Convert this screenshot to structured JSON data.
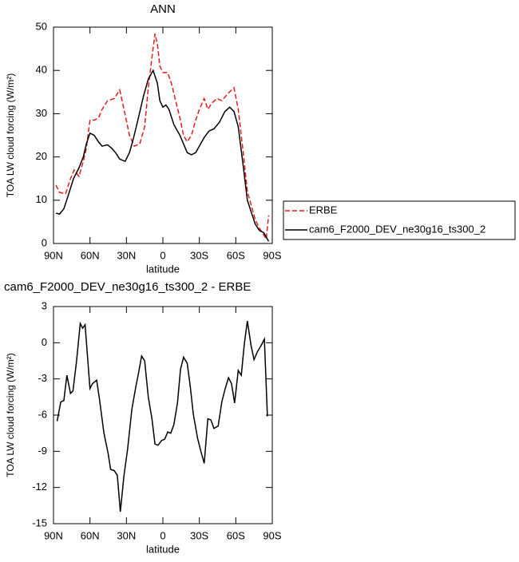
{
  "chart_data": [
    {
      "type": "line",
      "title": "ANN",
      "xlabel": "latitude",
      "ylabel": "TOA LW cloud forcing (W/m²)",
      "xlim": [
        90,
        -90
      ],
      "ylim": [
        0,
        50
      ],
      "xticks": [
        {
          "value": 90,
          "label": "90N"
        },
        {
          "value": 60,
          "label": "60N"
        },
        {
          "value": 30,
          "label": "30N"
        },
        0,
        {
          "value": -30,
          "label": "30S"
        },
        {
          "value": -60,
          "label": "60S"
        },
        {
          "value": -90,
          "label": "90S"
        }
      ],
      "yticks": [
        0,
        10,
        20,
        30,
        40,
        50
      ],
      "legend": "right",
      "series": [
        {
          "name": "ERBE",
          "color": "#e41a1c",
          "dash": true,
          "x": [
            88,
            85,
            80,
            76,
            73,
            69,
            65.5,
            63,
            60,
            56.5,
            53,
            50,
            45.5,
            40,
            35.5,
            32,
            27.5,
            23.5,
            19,
            15,
            12,
            9,
            6.5,
            4.5,
            2.5,
            0,
            -4,
            -7,
            -10.5,
            -14,
            -17,
            -20,
            -23.5,
            -27,
            -30,
            -34,
            -37,
            -40.5,
            -44.5,
            -48.5,
            -53,
            -58.5,
            -62,
            -66.5,
            -69.5,
            -73,
            -76,
            -79.5,
            -83,
            -85,
            -87
          ],
          "values": [
            13.5,
            11.8,
            11.5,
            15,
            17,
            15.5,
            19,
            22,
            28.5,
            28.5,
            29,
            31,
            33,
            33.5,
            35.5,
            31,
            25,
            22.5,
            23,
            27,
            36,
            43,
            48.5,
            46,
            41,
            39.5,
            39.5,
            37,
            33,
            29,
            25,
            23.5,
            25,
            28.5,
            31,
            33.5,
            31,
            32.5,
            33.5,
            33,
            34.5,
            36,
            31,
            20,
            12,
            8.5,
            5.5,
            3.5,
            2,
            1,
            6.5
          ]
        },
        {
          "name": "cam6_F2000_DEV_ne30g16_ts300_2",
          "color": "#000000",
          "dash": false,
          "x": [
            88,
            85,
            81.5,
            78,
            73.5,
            69,
            65.5,
            63,
            60,
            56.5,
            53,
            50,
            45.5,
            42,
            39,
            35.5,
            31,
            27.5,
            24.5,
            21,
            16,
            12,
            8,
            4.5,
            2.5,
            0,
            -2.5,
            -5,
            -9,
            -14,
            -17,
            -20,
            -23.5,
            -27,
            -30,
            -34,
            -38,
            -42,
            -46.5,
            -51,
            -55,
            -58.5,
            -62,
            -66.5,
            -69.5,
            -73,
            -76,
            -79.5,
            -83,
            -85,
            -87
          ],
          "values": [
            7,
            6.8,
            8,
            11,
            15,
            17.5,
            20,
            23,
            25.5,
            25,
            23.5,
            22.5,
            22.8,
            22,
            21,
            19.5,
            19,
            21,
            24,
            28,
            34,
            38,
            40,
            37,
            33,
            31.5,
            32,
            31,
            27.5,
            25,
            23,
            21,
            20.5,
            21,
            22.5,
            24.5,
            26,
            26.5,
            28,
            30.5,
            31.5,
            30.5,
            27,
            17,
            10,
            7,
            4.5,
            3,
            2.5,
            1.5,
            0.5
          ]
        }
      ]
    },
    {
      "type": "line",
      "title": "cam6_F2000_DEV_ne30g16_ts300_2 - ERBE",
      "xlabel": "latitude",
      "ylabel": "TOA LW cloud forcing (W/m²)",
      "xlim": [
        90,
        -90
      ],
      "ylim": [
        -15,
        3
      ],
      "xticks": [
        {
          "value": 90,
          "label": "90N"
        },
        {
          "value": 60,
          "label": "60N"
        },
        {
          "value": 30,
          "label": "30N"
        },
        0,
        {
          "value": -30,
          "label": "30S"
        },
        {
          "value": -60,
          "label": "60S"
        },
        {
          "value": -90,
          "label": "90S"
        }
      ],
      "yticks": [
        -15,
        -12,
        -9,
        -6,
        -3,
        0,
        3
      ],
      "series": [
        {
          "color": "#000000",
          "dash": false,
          "x": [
            87,
            84,
            81.5,
            79,
            76,
            74,
            71,
            68,
            66,
            64,
            60,
            58,
            54.5,
            52,
            48.5,
            45,
            43,
            40,
            37.5,
            35,
            32,
            29,
            25.5,
            22,
            20,
            17.5,
            15,
            12,
            9,
            6.5,
            4,
            1,
            -1.5,
            -4,
            -6.5,
            -9,
            -12,
            -14.5,
            -17,
            -20,
            -22.5,
            -25,
            -28.5,
            -31.5,
            -34,
            -37,
            -39.5,
            -42,
            -45.5,
            -48.5,
            -51,
            -54,
            -56.5,
            -59,
            -62,
            -64.5,
            -67,
            -69.5,
            -72.5,
            -75,
            -77.5,
            -81,
            -83.5,
            -86
          ],
          "values": [
            -6.5,
            -4.9,
            -4.8,
            -2.7,
            -4.2,
            -4,
            -1.5,
            1.6,
            1.2,
            1.5,
            -3.8,
            -3.4,
            -3.1,
            -4.8,
            -7.5,
            -9.2,
            -10.5,
            -10.6,
            -11,
            -14,
            -11,
            -8.8,
            -5.5,
            -3.5,
            -2.5,
            -1.1,
            -1.5,
            -4.5,
            -6.3,
            -8.4,
            -8.5,
            -8.1,
            -8,
            -7.4,
            -7.5,
            -6.8,
            -5,
            -2.2,
            -1.2,
            -1.7,
            -3.6,
            -5.9,
            -7.9,
            -9.1,
            -10,
            -6.3,
            -6.4,
            -7.1,
            -6.9,
            -4.9,
            -3.9,
            -2.9,
            -3.4,
            -5,
            -2.3,
            -2.7,
            -0.1,
            1.8,
            -0.2,
            -1.4,
            -0.8,
            -0.2,
            0.3,
            -6.1
          ]
        }
      ]
    }
  ]
}
